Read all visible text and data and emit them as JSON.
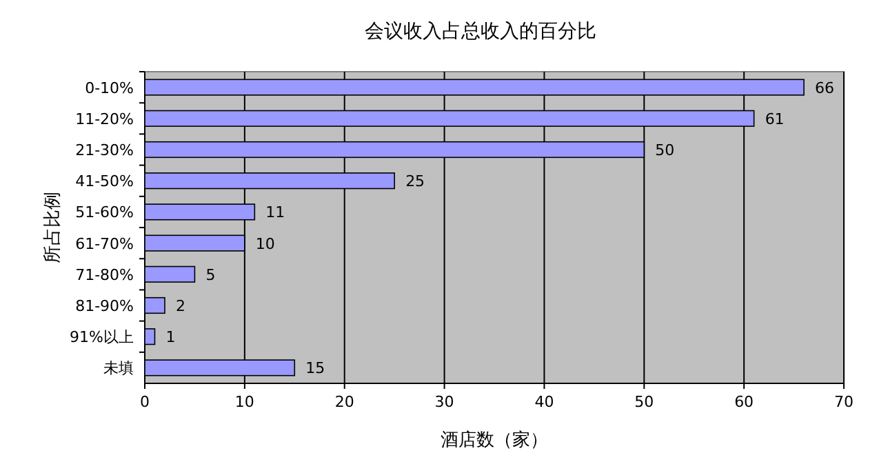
{
  "chart_data": {
    "type": "bar",
    "orientation": "horizontal",
    "title": "会议收入占总收入的百分比",
    "xlabel": "酒店数（家）",
    "ylabel": "所占比例",
    "categories": [
      "0-10%",
      "11-20%",
      "21-30%",
      "41-50%",
      "51-60%",
      "61-70%",
      "71-80%",
      "81-90%",
      "91%以上",
      "未填"
    ],
    "values": [
      66,
      61,
      50,
      25,
      11,
      10,
      5,
      2,
      1,
      15
    ],
    "color": "#9999ff",
    "xlim": [
      0,
      70
    ],
    "xticks": [
      0,
      10,
      20,
      30,
      40,
      50,
      60,
      70
    ],
    "grid": "x",
    "data_labels": true
  }
}
